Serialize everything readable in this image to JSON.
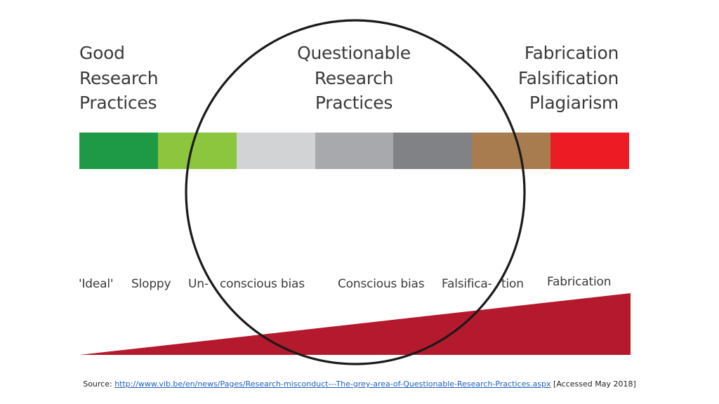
{
  "headings": {
    "left": [
      "Good",
      "Research",
      "Practices"
    ],
    "center": [
      "Questionable",
      "Research",
      "Practices"
    ],
    "right": [
      "Fabrication",
      "Falsification",
      "Plagiarism"
    ]
  },
  "spectrum": {
    "segments": [
      {
        "color": "#1e9a46"
      },
      {
        "color": "#8cc63f"
      },
      {
        "color": "#d1d3d4"
      },
      {
        "color": "#a7a9ac"
      },
      {
        "color": "#808285"
      },
      {
        "color": "#a97c50"
      },
      {
        "color": "#ed1c24"
      }
    ]
  },
  "scale_labels": [
    "'Ideal'",
    "Sloppy",
    "Un-",
    "conscious bias",
    "Conscious bias",
    "Falsifica-",
    "tion",
    "Fabrication"
  ],
  "wedge_color": "#b5192d",
  "circle_color": "#1a1a1a",
  "source": {
    "prefix": "Source: ",
    "url": "http://www.vib.be/en/news/Pages/Research-misconduct---The-grey-area-of-Questionable-Research-Practices.aspx",
    "suffix": " [Accessed May 2018]"
  }
}
